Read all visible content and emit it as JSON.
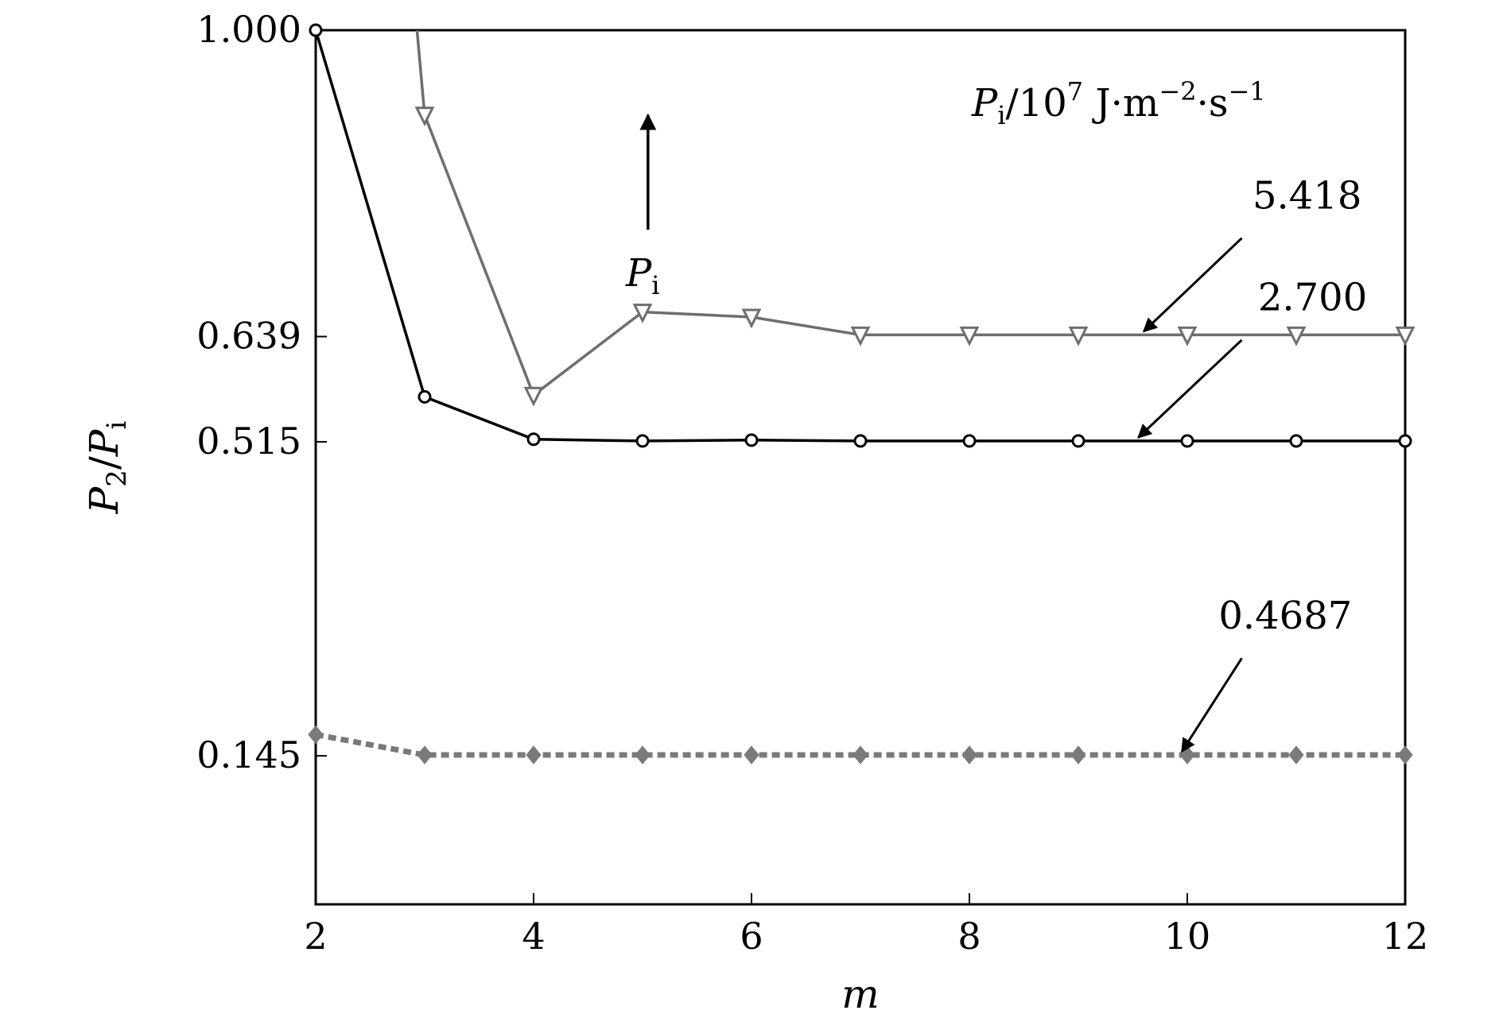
{
  "chart_data": {
    "type": "line",
    "title": "",
    "xlabel": "m",
    "ylabel": {
      "main": "P",
      "sub": "2",
      "slash": "/",
      "main2": "P",
      "sub2": "i"
    },
    "xlim": [
      2,
      12
    ],
    "ylim": [
      -0.03,
      1.0
    ],
    "x_ticks": [
      "2",
      "4",
      "6",
      "8",
      "10",
      "12"
    ],
    "y_ticks": [
      {
        "value": 1.0,
        "label": "1.000"
      },
      {
        "value": 0.639,
        "label": "0.639"
      },
      {
        "value": 0.515,
        "label": "0.515"
      },
      {
        "value": 0.145,
        "label": "0.145"
      }
    ],
    "grid": false,
    "legend_title": {
      "main": "P",
      "sub": "i",
      "rest": "/10",
      "sup": "7",
      "unit": " J·m",
      "unit_sup": "−2",
      "unit2": "·s",
      "unit2_sup": "−1"
    },
    "arrow_label": {
      "main": "P",
      "sub": "i"
    },
    "series": [
      {
        "name": "5.418",
        "color": "#6e6e6e",
        "marker": "triangle-down",
        "dashed": false,
        "x": [
          2.93,
          3,
          4,
          5,
          6,
          7,
          8,
          9,
          10,
          11,
          12
        ],
        "y": [
          1.0,
          0.9,
          0.57,
          0.668,
          0.662,
          0.641,
          0.641,
          0.641,
          0.641,
          0.641,
          0.641
        ],
        "marker_from": 1
      },
      {
        "name": "2.700",
        "color": "#000000",
        "marker": "circle",
        "dashed": false,
        "x": [
          2,
          3,
          4,
          5,
          6,
          7,
          8,
          9,
          10,
          11,
          12
        ],
        "y": [
          1.0,
          0.568,
          0.518,
          0.516,
          0.517,
          0.516,
          0.516,
          0.516,
          0.516,
          0.516,
          0.516
        ],
        "marker_from": 0
      },
      {
        "name": "0.4687",
        "color": "#7a7a7a",
        "marker": "diamond",
        "dashed": true,
        "x": [
          2,
          3,
          4,
          5,
          6,
          7,
          8,
          9,
          10,
          11,
          12
        ],
        "y": [
          0.17,
          0.146,
          0.146,
          0.146,
          0.146,
          0.146,
          0.146,
          0.146,
          0.146,
          0.146,
          0.146
        ],
        "marker_from": 0
      }
    ],
    "annotations": [
      {
        "text": "5.418",
        "text_at": [
          11.1,
          0.79
        ],
        "arrow_from": [
          10.5,
          0.755
        ],
        "arrow_to": [
          9.6,
          0.645
        ]
      },
      {
        "text": "2.700",
        "text_at": [
          11.15,
          0.67
        ],
        "arrow_from": [
          10.5,
          0.635
        ],
        "arrow_to": [
          9.55,
          0.52
        ]
      },
      {
        "text": "0.4687",
        "text_at": [
          10.9,
          0.295
        ],
        "arrow_from": [
          10.5,
          0.26
        ],
        "arrow_to": [
          9.95,
          0.15
        ]
      }
    ],
    "increase_arrow": {
      "x": 5.05,
      "y_from": 0.765,
      "y_to": 0.9
    }
  }
}
